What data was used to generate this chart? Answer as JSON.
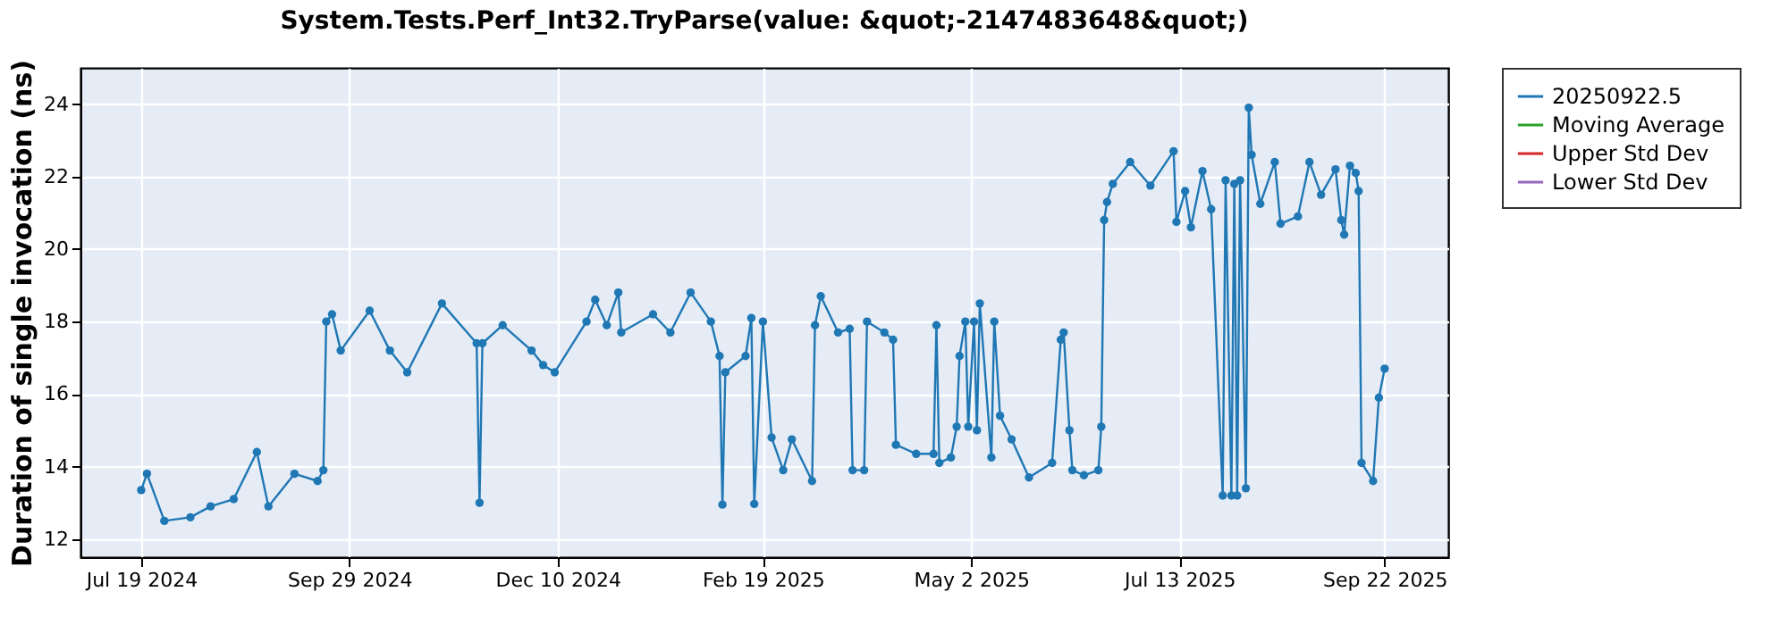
{
  "chart_data": {
    "type": "line",
    "title": "System.Tests.Perf_Int32.TryParse(value: &quot;-2147483648&quot;)",
    "ylabel": "Duration of single invocation (ns)",
    "x": [
      "2024-07-19",
      "2024-07-21",
      "2024-07-27",
      "2024-08-05",
      "2024-08-12",
      "2024-08-20",
      "2024-08-28",
      "2024-09-01",
      "2024-09-10",
      "2024-09-18",
      "2024-09-20",
      "2024-09-21",
      "2024-09-23",
      "2024-09-26",
      "2024-10-06",
      "2024-10-13",
      "2024-10-19",
      "2024-10-31",
      "2024-11-12",
      "2024-11-13",
      "2024-11-14",
      "2024-11-21",
      "2024-12-01",
      "2024-12-05",
      "2024-12-09",
      "2024-12-20",
      "2024-12-23",
      "2024-12-27",
      "2024-12-31",
      "2025-01-01",
      "2025-01-12",
      "2025-01-18",
      "2025-01-25",
      "2025-02-01",
      "2025-02-04",
      "2025-02-05",
      "2025-02-06",
      "2025-02-13",
      "2025-02-15",
      "2025-02-16",
      "2025-02-19",
      "2025-02-22",
      "2025-02-26",
      "2025-03-01",
      "2025-03-08",
      "2025-03-09",
      "2025-03-11",
      "2025-03-17",
      "2025-03-21",
      "2025-03-22",
      "2025-03-26",
      "2025-03-27",
      "2025-04-02",
      "2025-04-05",
      "2025-04-06",
      "2025-04-13",
      "2025-04-19",
      "2025-04-20",
      "2025-04-21",
      "2025-04-25",
      "2025-04-27",
      "2025-04-28",
      "2025-04-30",
      "2025-05-01",
      "2025-05-03",
      "2025-05-04",
      "2025-05-05",
      "2025-05-09",
      "2025-05-10",
      "2025-05-12",
      "2025-05-16",
      "2025-05-22",
      "2025-05-30",
      "2025-06-02",
      "2025-06-03",
      "2025-06-05",
      "2025-06-06",
      "2025-06-10",
      "2025-06-15",
      "2025-06-16",
      "2025-06-17",
      "2025-06-18",
      "2025-06-20",
      "2025-06-26",
      "2025-07-03",
      "2025-07-11",
      "2025-07-12",
      "2025-07-15",
      "2025-07-17",
      "2025-07-21",
      "2025-07-24",
      "2025-07-28",
      "2025-07-29",
      "2025-07-31",
      "2025-08-01",
      "2025-08-02",
      "2025-08-03",
      "2025-08-05",
      "2025-08-06",
      "2025-08-07",
      "2025-08-10",
      "2025-08-15",
      "2025-08-17",
      "2025-08-23",
      "2025-08-27",
      "2025-08-31",
      "2025-09-05",
      "2025-09-07",
      "2025-09-08",
      "2025-09-10",
      "2025-09-12",
      "2025-09-13",
      "2025-09-14",
      "2025-09-18",
      "2025-09-20",
      "2025-09-22"
    ],
    "series": [
      {
        "name": "20250922.5",
        "color": "#1f77b4",
        "values": [
          13.35,
          13.8,
          12.5,
          12.6,
          12.9,
          13.1,
          14.4,
          12.9,
          13.8,
          13.6,
          13.9,
          18.0,
          18.2,
          17.2,
          18.3,
          17.2,
          16.6,
          18.5,
          17.4,
          13.0,
          17.4,
          17.9,
          17.2,
          16.8,
          16.6,
          18.0,
          18.6,
          17.9,
          18.8,
          17.7,
          18.2,
          17.7,
          18.8,
          18.0,
          17.05,
          12.95,
          16.6,
          17.05,
          18.1,
          12.97,
          18.0,
          14.8,
          13.9,
          14.75,
          13.6,
          17.9,
          18.7,
          17.7,
          17.8,
          13.9,
          13.9,
          18.0,
          17.7,
          17.5,
          14.6,
          14.35,
          14.35,
          17.9,
          14.1,
          14.25,
          15.1,
          17.05,
          18.0,
          15.1,
          18.0,
          15.0,
          18.5,
          14.25,
          18.0,
          15.4,
          14.75,
          13.7,
          14.1,
          17.5,
          17.7,
          15.0,
          13.9,
          13.76,
          13.9,
          15.1,
          20.8,
          21.3,
          21.8,
          22.4,
          21.75,
          22.7,
          20.75,
          21.6,
          20.6,
          22.15,
          21.1,
          13.2,
          21.9,
          13.2,
          21.8,
          13.2,
          21.9,
          13.4,
          23.9,
          22.6,
          21.25,
          22.4,
          20.7,
          20.9,
          22.4,
          21.5,
          22.2,
          20.8,
          20.4,
          22.3,
          22.1,
          21.6,
          14.1,
          13.6,
          15.9,
          16.7
        ]
      },
      {
        "name": "Moving Average",
        "color": "#2ca02c",
        "values": [
          null,
          null,
          null,
          null,
          null,
          null,
          null,
          null,
          null,
          null,
          null,
          null,
          null,
          null,
          null,
          null,
          null,
          null,
          null,
          null,
          null,
          null,
          null,
          null,
          null,
          null,
          null,
          null,
          null,
          null,
          null,
          null,
          null,
          null,
          null,
          null,
          null,
          null,
          null,
          null,
          null,
          null,
          null,
          null,
          null,
          null,
          null,
          null,
          null,
          null,
          null,
          null,
          null,
          null,
          null,
          null,
          null,
          null,
          null,
          null,
          null,
          null,
          null,
          null,
          null,
          null,
          null,
          null,
          null,
          null,
          null,
          null,
          null,
          null,
          null,
          null,
          null,
          null,
          null,
          null,
          null,
          null,
          null,
          null,
          null,
          null,
          null,
          null,
          null,
          null,
          null,
          null,
          null,
          null,
          null,
          null,
          null,
          null,
          null,
          null,
          null,
          null,
          null,
          null,
          null,
          null,
          null,
          null,
          null,
          null,
          null,
          null,
          null,
          null,
          null,
          null
        ]
      },
      {
        "name": "Upper Std Dev",
        "color": "#d62728",
        "values": [
          null,
          null,
          null,
          null,
          null,
          null,
          null,
          null,
          null,
          null,
          null,
          null,
          null,
          null,
          null,
          null,
          null,
          null,
          null,
          null,
          null,
          null,
          null,
          null,
          null,
          null,
          null,
          null,
          null,
          null,
          null,
          null,
          null,
          null,
          null,
          null,
          null,
          null,
          null,
          null,
          null,
          null,
          null,
          null,
          null,
          null,
          null,
          null,
          null,
          null,
          null,
          null,
          null,
          null,
          null,
          null,
          null,
          null,
          null,
          null,
          null,
          null,
          null,
          null,
          null,
          null,
          null,
          null,
          null,
          null,
          null,
          null,
          null,
          null,
          null,
          null,
          null,
          null,
          null,
          null,
          null,
          null,
          null,
          null,
          null,
          null,
          null,
          null,
          null,
          null,
          null,
          null,
          null,
          null,
          null,
          null,
          null,
          null,
          null,
          null,
          null,
          null,
          null,
          null,
          null,
          null,
          null,
          null,
          null,
          null,
          null,
          null,
          null,
          null,
          null,
          null
        ]
      },
      {
        "name": "Lower Std Dev",
        "color": "#9467bd",
        "values": [
          null,
          null,
          null,
          null,
          null,
          null,
          null,
          null,
          null,
          null,
          null,
          null,
          null,
          null,
          null,
          null,
          null,
          null,
          null,
          null,
          null,
          null,
          null,
          null,
          null,
          null,
          null,
          null,
          null,
          null,
          null,
          null,
          null,
          null,
          null,
          null,
          null,
          null,
          null,
          null,
          null,
          null,
          null,
          null,
          null,
          null,
          null,
          null,
          null,
          null,
          null,
          null,
          null,
          null,
          null,
          null,
          null,
          null,
          null,
          null,
          null,
          null,
          null,
          null,
          null,
          null,
          null,
          null,
          null,
          null,
          null,
          null,
          null,
          null,
          null,
          null,
          null,
          null,
          null,
          null,
          null,
          null,
          null,
          null,
          null,
          null,
          null,
          null,
          null,
          null,
          null,
          null,
          null,
          null,
          null,
          null,
          null,
          null,
          null,
          null,
          null,
          null,
          null,
          null,
          null,
          null,
          null,
          null,
          null,
          null,
          null,
          null,
          null,
          null,
          null,
          null
        ]
      }
    ],
    "xlim": [
      "2024-06-28",
      "2025-10-14"
    ],
    "xticks": [
      {
        "value": "2024-07-19",
        "label": "Jul 19 2024"
      },
      {
        "value": "2024-09-29",
        "label": "Sep 29 2024"
      },
      {
        "value": "2024-12-10",
        "label": "Dec 10 2024"
      },
      {
        "value": "2025-02-19",
        "label": "Feb 19 2025"
      },
      {
        "value": "2025-05-02",
        "label": "May 2 2025"
      },
      {
        "value": "2025-07-13",
        "label": "Jul 13 2025"
      },
      {
        "value": "2025-09-22",
        "label": "Sep 22 2025"
      }
    ],
    "ylim": [
      11.5,
      25
    ],
    "yticks": [
      12,
      14,
      16,
      18,
      20,
      22,
      24
    ],
    "grid": true,
    "legend": "right",
    "marker": "circle",
    "line_style": "solid"
  }
}
